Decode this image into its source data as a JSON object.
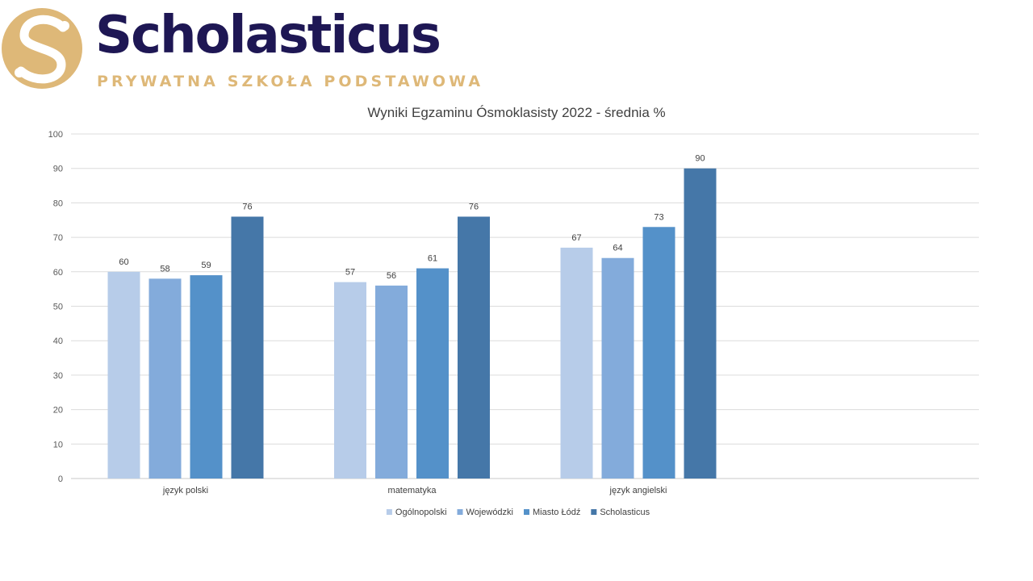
{
  "brand": {
    "name": "Scholasticus",
    "tagline": "PRYWATNA SZKOŁA PODSTAWOWA",
    "name_color": "#1e1754",
    "gold_color": "#deb878",
    "logo_icon": "s-monogram-icon"
  },
  "chart_data": {
    "type": "bar",
    "title": "Wyniki Egzaminu Ósmoklasisty 2022 - średnia %",
    "xlabel": "",
    "ylabel": "",
    "categories": [
      "język polski",
      "matematyka",
      "język angielski"
    ],
    "series": [
      {
        "name": "Ogólnopolski",
        "values": [
          60,
          57,
          67
        ],
        "color": "#b7cce9"
      },
      {
        "name": "Wojewódzki",
        "values": [
          58,
          56,
          64
        ],
        "color": "#83abdb"
      },
      {
        "name": "Miasto Łódź",
        "values": [
          59,
          61,
          73
        ],
        "color": "#5491c9"
      },
      {
        "name": "Scholasticus",
        "values": [
          76,
          76,
          90
        ],
        "color": "#4577a8"
      }
    ],
    "ylim": [
      0,
      100
    ],
    "yticks": [
      0,
      10,
      20,
      30,
      40,
      50,
      60,
      70,
      80,
      90,
      100
    ],
    "grid": true,
    "data_labels": true,
    "legend_position": "bottom"
  }
}
